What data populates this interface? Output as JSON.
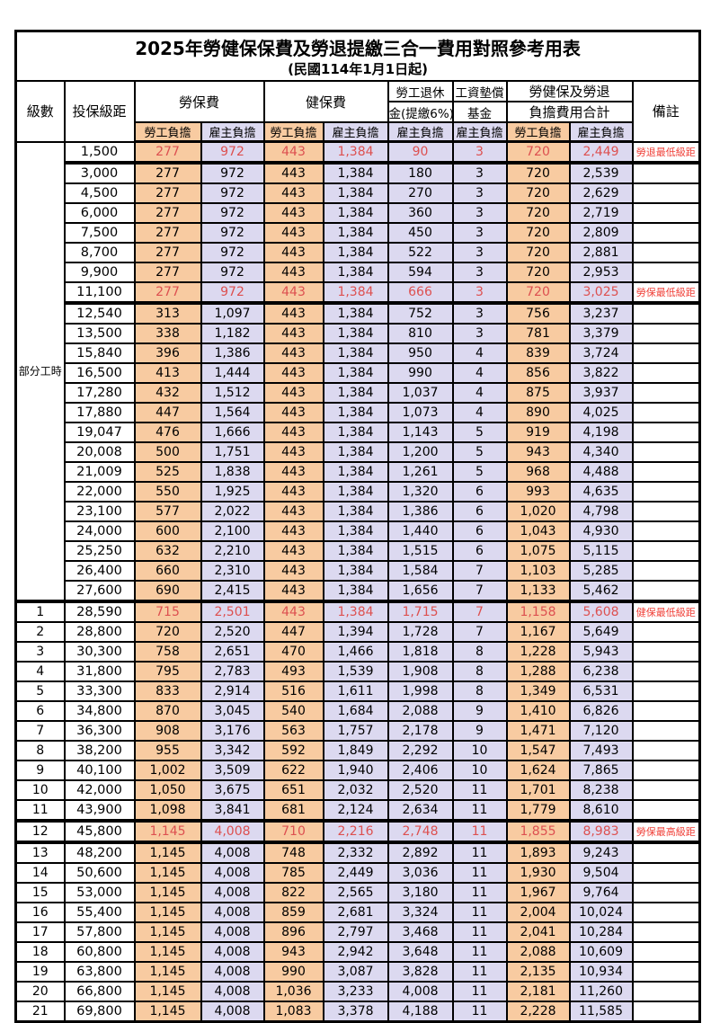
{
  "title": "2025年勞健保保費及勞退提繳三合一費用對照參考用表",
  "subtitle": "(民國114年1月1日起)",
  "colors": {
    "employee_bg": "#F8CBA1",
    "employer_bg": "#DCD9F0",
    "highlight_number_red": "#DD5050",
    "note_red": "#F04038",
    "border_black": "#000000"
  },
  "header": {
    "level": "級數",
    "bracket": "投保級距",
    "labor_fee": "勞保費",
    "health_fee": "健保費",
    "pension_line1": "勞工退休",
    "pension_line2": "金(提繳6%)",
    "wage_fund_line1": "工資墊償",
    "wage_fund_line2": "基金",
    "total_line1": "勞健保及勞退",
    "total_line2": "負擔費用合計",
    "note": "備註",
    "employee_share": "勞工負擔",
    "employer_share": "雇主負擔"
  },
  "part_time_label": "部分工時",
  "rows": [
    {
      "level": "",
      "bracket": "1,500",
      "values": [
        "277",
        "972",
        "443",
        "1,384",
        "90",
        "3",
        "720",
        "2,449"
      ],
      "note": "勞退最低級距",
      "red": true,
      "sep_below": true
    },
    {
      "level": "",
      "bracket": "3,000",
      "values": [
        "277",
        "972",
        "443",
        "1,384",
        "180",
        "3",
        "720",
        "2,539"
      ],
      "note": "",
      "red": false,
      "sep_below": false
    },
    {
      "level": "",
      "bracket": "4,500",
      "values": [
        "277",
        "972",
        "443",
        "1,384",
        "270",
        "3",
        "720",
        "2,629"
      ],
      "note": "",
      "red": false,
      "sep_below": false
    },
    {
      "level": "",
      "bracket": "6,000",
      "values": [
        "277",
        "972",
        "443",
        "1,384",
        "360",
        "3",
        "720",
        "2,719"
      ],
      "note": "",
      "red": false,
      "sep_below": false
    },
    {
      "level": "",
      "bracket": "7,500",
      "values": [
        "277",
        "972",
        "443",
        "1,384",
        "450",
        "3",
        "720",
        "2,809"
      ],
      "note": "",
      "red": false,
      "sep_below": false
    },
    {
      "level": "",
      "bracket": "8,700",
      "values": [
        "277",
        "972",
        "443",
        "1,384",
        "522",
        "3",
        "720",
        "2,881"
      ],
      "note": "",
      "red": false,
      "sep_below": false
    },
    {
      "level": "",
      "bracket": "9,900",
      "values": [
        "277",
        "972",
        "443",
        "1,384",
        "594",
        "3",
        "720",
        "2,953"
      ],
      "note": "",
      "red": false,
      "sep_below": false
    },
    {
      "level": "",
      "bracket": "11,100",
      "values": [
        "277",
        "972",
        "443",
        "1,384",
        "666",
        "3",
        "720",
        "3,025"
      ],
      "note": "勞保最低級距",
      "red": true,
      "sep_below": true
    },
    {
      "level": "",
      "bracket": "12,540",
      "values": [
        "313",
        "1,097",
        "443",
        "1,384",
        "752",
        "3",
        "756",
        "3,237"
      ],
      "note": "",
      "red": false,
      "sep_below": false
    },
    {
      "level": "",
      "bracket": "13,500",
      "values": [
        "338",
        "1,182",
        "443",
        "1,384",
        "810",
        "3",
        "781",
        "3,379"
      ],
      "note": "",
      "red": false,
      "sep_below": false
    },
    {
      "level": "",
      "bracket": "15,840",
      "values": [
        "396",
        "1,386",
        "443",
        "1,384",
        "950",
        "4",
        "839",
        "3,724"
      ],
      "note": "",
      "red": false,
      "sep_below": false
    },
    {
      "level": "",
      "bracket": "16,500",
      "values": [
        "413",
        "1,444",
        "443",
        "1,384",
        "990",
        "4",
        "856",
        "3,822"
      ],
      "note": "",
      "red": false,
      "sep_below": false
    },
    {
      "level": "",
      "bracket": "17,280",
      "values": [
        "432",
        "1,512",
        "443",
        "1,384",
        "1,037",
        "4",
        "875",
        "3,937"
      ],
      "note": "",
      "red": false,
      "sep_below": false
    },
    {
      "level": "",
      "bracket": "17,880",
      "values": [
        "447",
        "1,564",
        "443",
        "1,384",
        "1,073",
        "4",
        "890",
        "4,025"
      ],
      "note": "",
      "red": false,
      "sep_below": false
    },
    {
      "level": "",
      "bracket": "19,047",
      "values": [
        "476",
        "1,666",
        "443",
        "1,384",
        "1,143",
        "5",
        "919",
        "4,198"
      ],
      "note": "",
      "red": false,
      "sep_below": false
    },
    {
      "level": "",
      "bracket": "20,008",
      "values": [
        "500",
        "1,751",
        "443",
        "1,384",
        "1,200",
        "5",
        "943",
        "4,340"
      ],
      "note": "",
      "red": false,
      "sep_below": false
    },
    {
      "level": "",
      "bracket": "21,009",
      "values": [
        "525",
        "1,838",
        "443",
        "1,384",
        "1,261",
        "5",
        "968",
        "4,488"
      ],
      "note": "",
      "red": false,
      "sep_below": false
    },
    {
      "level": "",
      "bracket": "22,000",
      "values": [
        "550",
        "1,925",
        "443",
        "1,384",
        "1,320",
        "6",
        "993",
        "4,635"
      ],
      "note": "",
      "red": false,
      "sep_below": false
    },
    {
      "level": "",
      "bracket": "23,100",
      "values": [
        "577",
        "2,022",
        "443",
        "1,384",
        "1,386",
        "6",
        "1,020",
        "4,798"
      ],
      "note": "",
      "red": false,
      "sep_below": false
    },
    {
      "level": "",
      "bracket": "24,000",
      "values": [
        "600",
        "2,100",
        "443",
        "1,384",
        "1,440",
        "6",
        "1,043",
        "4,930"
      ],
      "note": "",
      "red": false,
      "sep_below": false
    },
    {
      "level": "",
      "bracket": "25,250",
      "values": [
        "632",
        "2,210",
        "443",
        "1,384",
        "1,515",
        "6",
        "1,075",
        "5,115"
      ],
      "note": "",
      "red": false,
      "sep_below": false
    },
    {
      "level": "",
      "bracket": "26,400",
      "values": [
        "660",
        "2,310",
        "443",
        "1,384",
        "1,584",
        "7",
        "1,103",
        "5,285"
      ],
      "note": "",
      "red": false,
      "sep_below": false
    },
    {
      "level": "",
      "bracket": "27,600",
      "values": [
        "690",
        "2,415",
        "443",
        "1,384",
        "1,656",
        "7",
        "1,133",
        "5,462"
      ],
      "note": "",
      "red": false,
      "sep_below": true
    },
    {
      "level": "1",
      "bracket": "28,590",
      "values": [
        "715",
        "2,501",
        "443",
        "1,384",
        "1,715",
        "7",
        "1,158",
        "5,608"
      ],
      "note": "健保最低級距",
      "red": true,
      "sep_below": false
    },
    {
      "level": "2",
      "bracket": "28,800",
      "values": [
        "720",
        "2,520",
        "447",
        "1,394",
        "1,728",
        "7",
        "1,167",
        "5,649"
      ],
      "note": "",
      "red": false,
      "sep_below": false
    },
    {
      "level": "3",
      "bracket": "30,300",
      "values": [
        "758",
        "2,651",
        "470",
        "1,466",
        "1,818",
        "8",
        "1,228",
        "5,943"
      ],
      "note": "",
      "red": false,
      "sep_below": false
    },
    {
      "level": "4",
      "bracket": "31,800",
      "values": [
        "795",
        "2,783",
        "493",
        "1,539",
        "1,908",
        "8",
        "1,288",
        "6,238"
      ],
      "note": "",
      "red": false,
      "sep_below": false
    },
    {
      "level": "5",
      "bracket": "33,300",
      "values": [
        "833",
        "2,914",
        "516",
        "1,611",
        "1,998",
        "8",
        "1,349",
        "6,531"
      ],
      "note": "",
      "red": false,
      "sep_below": false
    },
    {
      "level": "6",
      "bracket": "34,800",
      "values": [
        "870",
        "3,045",
        "540",
        "1,684",
        "2,088",
        "9",
        "1,410",
        "6,826"
      ],
      "note": "",
      "red": false,
      "sep_below": false
    },
    {
      "level": "7",
      "bracket": "36,300",
      "values": [
        "908",
        "3,176",
        "563",
        "1,757",
        "2,178",
        "9",
        "1,471",
        "7,120"
      ],
      "note": "",
      "red": false,
      "sep_below": false
    },
    {
      "level": "8",
      "bracket": "38,200",
      "values": [
        "955",
        "3,342",
        "592",
        "1,849",
        "2,292",
        "10",
        "1,547",
        "7,493"
      ],
      "note": "",
      "red": false,
      "sep_below": false
    },
    {
      "level": "9",
      "bracket": "40,100",
      "values": [
        "1,002",
        "3,509",
        "622",
        "1,940",
        "2,406",
        "10",
        "1,624",
        "7,865"
      ],
      "note": "",
      "red": false,
      "sep_below": false
    },
    {
      "level": "10",
      "bracket": "42,000",
      "values": [
        "1,050",
        "3,675",
        "651",
        "2,032",
        "2,520",
        "11",
        "1,701",
        "8,238"
      ],
      "note": "",
      "red": false,
      "sep_below": false
    },
    {
      "level": "11",
      "bracket": "43,900",
      "values": [
        "1,098",
        "3,841",
        "681",
        "2,124",
        "2,634",
        "11",
        "1,779",
        "8,610"
      ],
      "note": "",
      "red": false,
      "sep_below": true
    },
    {
      "level": "12",
      "bracket": "45,800",
      "values": [
        "1,145",
        "4,008",
        "710",
        "2,216",
        "2,748",
        "11",
        "1,855",
        "8,983"
      ],
      "note": "勞保最高級距",
      "red": true,
      "sep_below": true
    },
    {
      "level": "13",
      "bracket": "48,200",
      "values": [
        "1,145",
        "4,008",
        "748",
        "2,332",
        "2,892",
        "11",
        "1,893",
        "9,243"
      ],
      "note": "",
      "red": false,
      "sep_below": false
    },
    {
      "level": "14",
      "bracket": "50,600",
      "values": [
        "1,145",
        "4,008",
        "785",
        "2,449",
        "3,036",
        "11",
        "1,930",
        "9,504"
      ],
      "note": "",
      "red": false,
      "sep_below": false
    },
    {
      "level": "15",
      "bracket": "53,000",
      "values": [
        "1,145",
        "4,008",
        "822",
        "2,565",
        "3,180",
        "11",
        "1,967",
        "9,764"
      ],
      "note": "",
      "red": false,
      "sep_below": false
    },
    {
      "level": "16",
      "bracket": "55,400",
      "values": [
        "1,145",
        "4,008",
        "859",
        "2,681",
        "3,324",
        "11",
        "2,004",
        "10,024"
      ],
      "note": "",
      "red": false,
      "sep_below": false
    },
    {
      "level": "17",
      "bracket": "57,800",
      "values": [
        "1,145",
        "4,008",
        "896",
        "2,797",
        "3,468",
        "11",
        "2,041",
        "10,284"
      ],
      "note": "",
      "red": false,
      "sep_below": false
    },
    {
      "level": "18",
      "bracket": "60,800",
      "values": [
        "1,145",
        "4,008",
        "943",
        "2,942",
        "3,648",
        "11",
        "2,088",
        "10,609"
      ],
      "note": "",
      "red": false,
      "sep_below": false
    },
    {
      "level": "19",
      "bracket": "63,800",
      "values": [
        "1,145",
        "4,008",
        "990",
        "3,087",
        "3,828",
        "11",
        "2,135",
        "10,934"
      ],
      "note": "",
      "red": false,
      "sep_below": false
    },
    {
      "level": "20",
      "bracket": "66,800",
      "values": [
        "1,145",
        "4,008",
        "1,036",
        "3,233",
        "4,008",
        "11",
        "2,181",
        "11,260"
      ],
      "note": "",
      "red": false,
      "sep_below": false
    },
    {
      "level": "21",
      "bracket": "69,800",
      "values": [
        "1,145",
        "4,008",
        "1,083",
        "3,378",
        "4,188",
        "11",
        "2,228",
        "11,585"
      ],
      "note": "",
      "red": false,
      "sep_below": false
    }
  ]
}
